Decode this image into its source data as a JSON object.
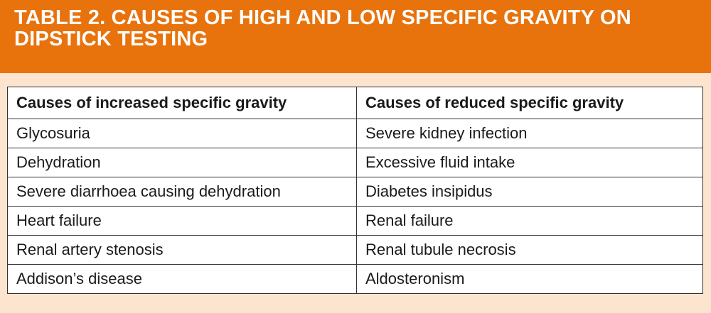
{
  "title": "TABLE 2. CAUSES OF HIGH AND LOW SPECIFIC GRAVITY ON DIPSTICK TESTING",
  "table": {
    "headers": [
      "Causes of increased specific gravity",
      "Causes of reduced specific gravity"
    ],
    "rows": [
      [
        "Glycosuria",
        "Severe kidney infection"
      ],
      [
        "Dehydration",
        "Excessive fluid intake"
      ],
      [
        "Severe diarrhoea causing dehydration",
        "Diabetes insipidus"
      ],
      [
        "Heart failure",
        "Renal failure"
      ],
      [
        "Renal artery stenosis",
        "Renal tubule necrosis"
      ],
      [
        "Addison’s disease",
        "Aldosteronism"
      ]
    ]
  },
  "colors": {
    "header_bg": "#e8720c",
    "page_bg": "#fde4cf",
    "table_bg": "#ffffff",
    "border": "#333333"
  }
}
